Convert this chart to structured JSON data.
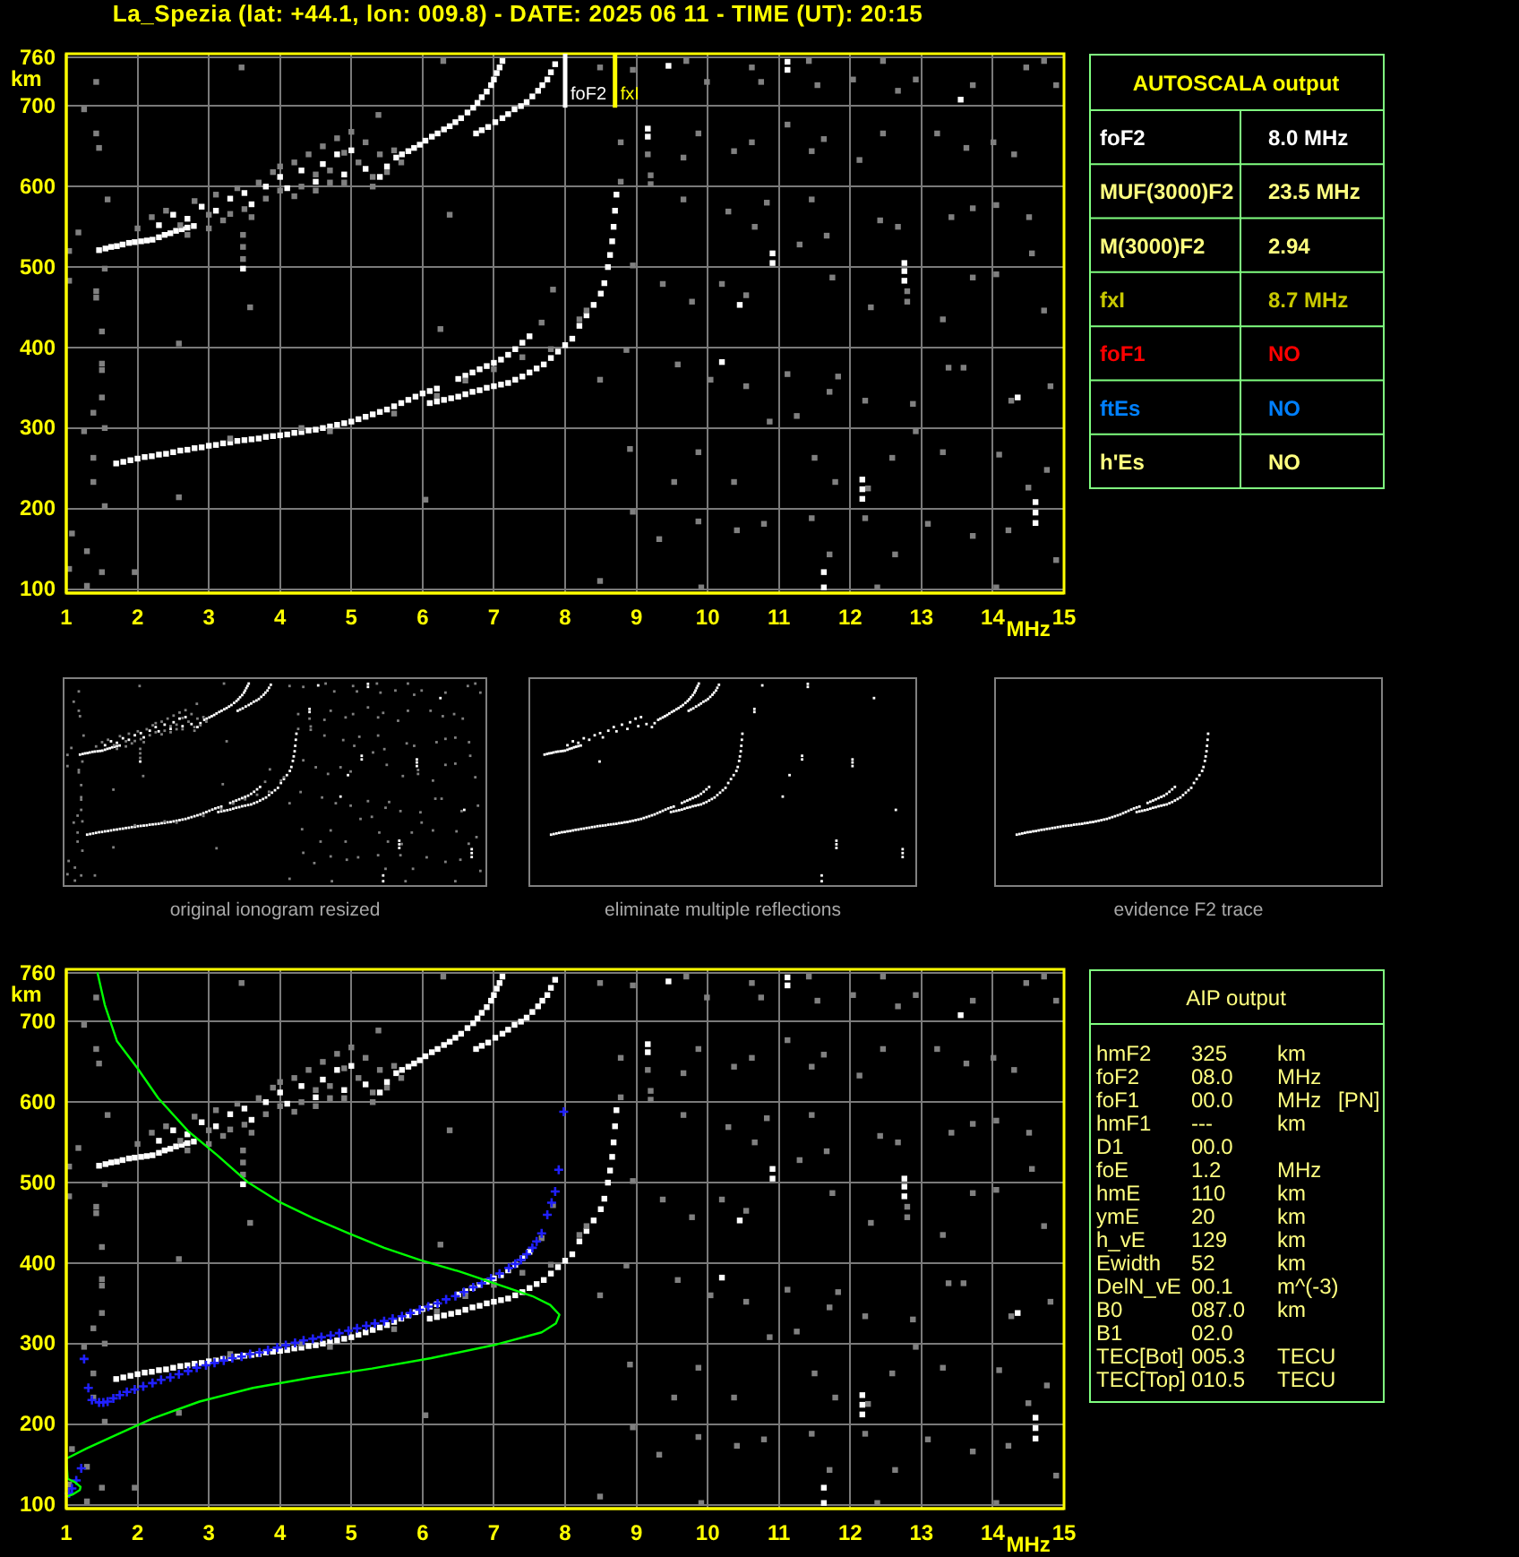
{
  "chart_data": [
    {
      "type": "scatter",
      "title": "La_Spezia (lat: +44.1, lon: 009.8) - DATE: 2025 06 11 - TIME (UT): 20:15",
      "xlabel": "MHz",
      "ylabel": "km",
      "xlim": [
        1,
        15
      ],
      "ylim": [
        95,
        765
      ],
      "xticks": [
        1,
        2,
        3,
        4,
        5,
        6,
        7,
        8,
        9,
        10,
        11,
        12,
        13,
        14,
        15
      ],
      "yticks": [
        100,
        200,
        300,
        400,
        500,
        600,
        700,
        760
      ],
      "grid": true,
      "marker": "square",
      "series": [
        {
          "color": "#ffffff",
          "x": [
            1.7,
            1.8,
            1.9,
            2.0,
            2.1,
            2.2,
            2.3,
            2.4,
            2.5,
            2.6,
            2.7,
            2.8,
            2.9,
            3.0,
            3.1,
            3.2,
            3.3,
            3.4,
            3.5,
            3.6,
            3.7,
            3.8,
            3.9,
            4.0,
            4.1,
            4.2,
            4.3,
            4.4,
            4.5,
            4.6,
            4.7,
            4.8,
            4.9,
            5.0,
            5.1,
            5.2,
            5.3,
            5.4,
            5.5,
            5.6,
            5.7,
            5.8,
            5.9,
            6.0,
            6.1,
            6.2,
            6.5,
            6.6,
            6.7,
            6.8,
            6.9,
            7.0,
            7.1,
            7.2,
            7.3,
            7.4,
            7.5,
            6.1,
            6.2,
            6.3,
            6.4,
            6.5,
            6.6,
            6.7,
            6.8,
            6.9,
            7.0,
            7.1,
            7.2,
            7.3,
            7.4,
            7.5,
            7.6,
            7.7,
            7.8,
            7.9,
            8.0,
            8.1,
            8.2,
            8.3,
            8.4,
            8.5,
            8.55,
            8.6,
            8.63,
            8.66,
            8.68,
            8.7,
            8.72
          ],
          "values": [
            256,
            258,
            260,
            262,
            264,
            265,
            267,
            268,
            270,
            272,
            273,
            275,
            276,
            278,
            279,
            281,
            282,
            284,
            285,
            286,
            287,
            289,
            290,
            291,
            292,
            294,
            295,
            297,
            298,
            300,
            302,
            304,
            306,
            308,
            311,
            314,
            317,
            320,
            323,
            327,
            331,
            335,
            339,
            343,
            346,
            349,
            361,
            365,
            369,
            373,
            377,
            381,
            385,
            391,
            398,
            406,
            414,
            331,
            333,
            335,
            337,
            339,
            342,
            345,
            347,
            350,
            352,
            354,
            356,
            360,
            364,
            369,
            374,
            379,
            387,
            395,
            403,
            411,
            427,
            440,
            453,
            467,
            480,
            500,
            515,
            532,
            550,
            570,
            590
          ]
        },
        {
          "color": "#ffffff",
          "x": [
            1.46,
            1.55,
            1.63,
            1.71,
            1.79,
            1.88,
            1.96,
            2.05,
            2.13,
            2.21,
            2.3,
            2.38,
            2.46,
            2.54,
            2.62,
            2.7,
            2.79,
            5.63,
            5.71,
            5.8,
            5.88,
            5.96,
            6.04,
            6.13,
            6.21,
            6.3,
            6.38,
            6.46,
            6.54,
            6.63,
            6.71,
            6.77,
            6.83,
            6.9,
            6.96,
            7.0,
            7.04,
            7.08,
            7.12,
            6.75,
            6.83,
            6.92,
            7.02,
            7.12,
            7.2,
            7.29,
            7.38,
            7.46,
            7.54,
            7.62,
            7.68,
            7.75,
            7.8,
            7.86,
            2.3,
            2.5,
            2.7,
            2.9,
            3.1,
            3.3,
            3.5,
            3.6,
            3.8,
            4.0,
            4.1,
            4.3,
            4.5,
            4.6,
            4.8,
            4.9,
            5.0,
            5.2,
            5.4,
            5.5,
            9.16,
            9.16,
            9.45,
            10.45,
            10.91,
            10.91,
            11.12,
            11.12,
            12.76,
            12.76,
            12.76,
            13.55,
            10.2,
            12.17,
            12.17,
            12.17,
            14.6,
            14.6,
            14.6,
            14.35,
            11.63,
            11.63,
            3.48
          ],
          "values": [
            521,
            523,
            525,
            526,
            528,
            530,
            531,
            532,
            533,
            534,
            537,
            540,
            542,
            545,
            547,
            549,
            551,
            636,
            640,
            644,
            648,
            652,
            657,
            662,
            666,
            671,
            675,
            680,
            685,
            692,
            698,
            704,
            711,
            718,
            726,
            733,
            741,
            748,
            756,
            666,
            670,
            674,
            680,
            685,
            690,
            696,
            700,
            705,
            712,
            719,
            726,
            733,
            742,
            752,
            552,
            565,
            560,
            575,
            570,
            585,
            592,
            578,
            600,
            612,
            598,
            620,
            606,
            628,
            640,
            615,
            645,
            622,
            612,
            625,
            662,
            672,
            750,
            453,
            505,
            517,
            745,
            755,
            483,
            495,
            505,
            708,
            382,
            212,
            224,
            236,
            182,
            195,
            208,
            338,
            121,
            102,
            498
          ]
        },
        {
          "color": "#808080",
          "x": [
            2.0,
            2.2,
            2.4,
            2.6,
            2.8,
            3.0,
            3.1,
            3.2,
            3.4,
            3.5,
            3.7,
            3.8,
            3.9,
            4.0,
            4.2,
            4.3,
            4.4,
            4.5,
            4.6,
            4.7,
            4.8,
            4.9,
            5.0,
            5.1,
            5.2,
            5.3,
            5.4,
            5.5,
            5.6,
            4.2,
            3.6,
            4.9,
            5.3,
            2.7,
            3.3,
            4.5,
            5.7,
            3.0,
            4.0,
            4.7,
            3.3,
            4.3,
            4.7,
            5.6,
            6.2,
            6.6,
            7.0,
            7.4,
            7.8,
            8.2,
            8.3,
            1.42,
            1.25,
            1.42,
            1.46,
            1.58,
            1.17,
            1.04,
            1.54,
            1.04,
            1.42,
            1.42,
            1.5,
            1.5,
            1.5,
            1.5,
            1.38,
            1.25,
            1.38,
            1.38,
            1.54,
            1.08,
            1.29,
            1.04,
            1.5,
            1.96,
            1.29,
            3.46,
            5.38,
            3.48,
            3.48,
            3.48,
            6.38,
            3.58,
            2.58,
            6.25,
            7.83,
            7.67,
            2.58,
            6.04,
            1.54,
            6.29,
            8.49,
            8.95,
            9.7,
            9.99,
            10.62,
            10.75,
            11.42,
            11.54,
            12.04,
            12.46,
            12.67,
            12.92,
            13.72,
            14.47,
            14.72,
            14.89,
            8.78,
            9.2,
            9.66,
            9.87,
            10.37,
            10.62,
            11.12,
            11.46,
            11.63,
            12.13,
            12.46,
            13.22,
            13.63,
            14.01,
            14.3,
            9.16,
            8.78,
            9.2,
            9.66,
            10.29,
            10.66,
            10.83,
            11.46,
            11.67,
            12.42,
            12.67,
            13.42,
            13.72,
            14.05,
            14.51,
            14.55,
            8.95,
            9.37,
            9.78,
            10.2,
            10.54,
            11.29,
            11.75,
            12.29,
            12.8,
            13.3,
            13.72,
            14.05,
            14.72,
            12.8,
            8.49,
            8.86,
            9.58,
            10.04,
            10.54,
            11.12,
            11.71,
            11.83,
            12.21,
            12.88,
            13.38,
            13.59,
            14.26,
            14.81,
            8.91,
            9.53,
            9.87,
            10.37,
            10.87,
            11.25,
            11.5,
            11.79,
            12.59,
            12.92,
            13.3,
            14.09,
            14.76,
            14.5,
            12.25,
            8.95,
            9.32,
            9.87,
            10.41,
            10.79,
            11.46,
            11.71,
            12.21,
            12.63,
            13.09,
            13.72,
            14.22,
            14.89,
            8.49,
            9.91,
            12.38,
            14.05
          ],
          "values": [
            548,
            562,
            570,
            552,
            582,
            565,
            590,
            558,
            598,
            572,
            605,
            585,
            618,
            595,
            630,
            600,
            640,
            615,
            650,
            620,
            660,
            642,
            668,
            630,
            655,
            612,
            640,
            618,
            645,
            588,
            562,
            605,
            600,
            540,
            566,
            595,
            630,
            548,
            625,
            605,
            287,
            300,
            296,
            318,
            340,
            359,
            373,
            388,
            398,
            435,
            446,
            730,
            696,
            666,
            648,
            584,
            543,
            520,
            498,
            483,
            470,
            462,
            420,
            380,
            372,
            338,
            319,
            296,
            263,
            233,
            203,
            169,
            147,
            125,
            121,
            121,
            104,
            748,
            689,
            540,
            525,
            510,
            565,
            450,
            405,
            423,
            472,
            431,
            214,
            211,
            300,
            756,
            748,
            745,
            756,
            730,
            748,
            730,
            756,
            726,
            733,
            756,
            719,
            733,
            726,
            748,
            756,
            726,
            655,
            614,
            636,
            666,
            644,
            655,
            677,
            644,
            659,
            633,
            666,
            666,
            648,
            655,
            640,
            640,
            606,
            603,
            584,
            569,
            550,
            580,
            584,
            539,
            558,
            550,
            562,
            573,
            577,
            562,
            517,
            502,
            479,
            457,
            479,
            465,
            528,
            487,
            450,
            457,
            435,
            487,
            491,
            446,
            470,
            360,
            397,
            379,
            360,
            352,
            367,
            345,
            364,
            334,
            330,
            375,
            375,
            334,
            352,
            274,
            233,
            270,
            233,
            308,
            315,
            263,
            233,
            263,
            296,
            270,
            267,
            248,
            226,
            225,
            196,
            162,
            184,
            173,
            181,
            188,
            143,
            188,
            143,
            181,
            166,
            173,
            136,
            110,
            102,
            102,
            102
          ]
        }
      ],
      "ref_lines": [
        {
          "axis": "x",
          "value": 8.0,
          "label": "foF2",
          "color": "#ffffff"
        },
        {
          "axis": "x",
          "value": 8.7,
          "label": "fxI",
          "color": "#ffff00"
        }
      ]
    },
    {
      "type": "other",
      "title": "AUTOSCALA output",
      "annotations": [
        "foF2\t8.0 MHz",
        "MUF(3000)F2\t23.5 MHz",
        "M(3000)F2\t2.94",
        "fxI\t8.7 MHz",
        "foF1\tNO",
        "ftEs\tNO",
        "h'Es\tNO"
      ],
      "colors": [
        "#ffffff",
        "#ffff80",
        "#ffff80",
        "#c8c800",
        "#ff0000",
        "#0080ff",
        "#ffff80"
      ]
    },
    {
      "type": "other",
      "annotations": [
        "original ionogram resized",
        "eliminate multiple reflections",
        "evidence F2 trace"
      ]
    },
    {
      "type": "scatter",
      "xlabel": "MHz",
      "ylabel": "km",
      "xlim": [
        1,
        15
      ],
      "ylim": [
        95,
        765
      ],
      "xticks": [
        1,
        2,
        3,
        4,
        5,
        6,
        7,
        8,
        9,
        10,
        11,
        12,
        13,
        14,
        15
      ],
      "yticks": [
        100,
        200,
        300,
        400,
        500,
        600,
        700,
        760
      ],
      "grid": true,
      "marker": "square",
      "series": [
        {
          "color": "#ffffff",
          "x": [
            1.7,
            1.8,
            1.9,
            2.0,
            2.1,
            2.2,
            2.3,
            2.4,
            2.5,
            2.6,
            2.7,
            2.8,
            2.9,
            3.0,
            3.1,
            3.2,
            3.3,
            3.4,
            3.5,
            3.6,
            3.7,
            3.8,
            3.9,
            4.0,
            4.1,
            4.2,
            4.3,
            4.4,
            4.5,
            4.6,
            4.7,
            4.8,
            4.9,
            5.0,
            5.1,
            5.2,
            5.3,
            5.4,
            5.5,
            5.6,
            5.7,
            5.8,
            5.9,
            6.0,
            6.1,
            6.2,
            6.5,
            6.6,
            6.7,
            6.8,
            6.9,
            7.0,
            7.1,
            7.2,
            7.3,
            7.4,
            7.5,
            6.1,
            6.2,
            6.3,
            6.4,
            6.5,
            6.6,
            6.7,
            6.8,
            6.9,
            7.0,
            7.1,
            7.2,
            7.3,
            7.4,
            7.5,
            7.6,
            7.7,
            7.8,
            7.9,
            8.0,
            8.1,
            8.2,
            8.3,
            8.4,
            8.5,
            8.55,
            8.6,
            8.63,
            8.66,
            8.68,
            8.7,
            8.72
          ],
          "values": [
            256,
            258,
            260,
            262,
            264,
            265,
            267,
            268,
            270,
            272,
            273,
            275,
            276,
            278,
            279,
            281,
            282,
            284,
            285,
            286,
            287,
            289,
            290,
            291,
            292,
            294,
            295,
            297,
            298,
            300,
            302,
            304,
            306,
            308,
            311,
            314,
            317,
            320,
            323,
            327,
            331,
            335,
            339,
            343,
            346,
            349,
            361,
            365,
            369,
            373,
            377,
            381,
            385,
            391,
            398,
            406,
            414,
            331,
            333,
            335,
            337,
            339,
            342,
            345,
            347,
            350,
            352,
            354,
            356,
            360,
            364,
            369,
            374,
            379,
            387,
            395,
            403,
            411,
            427,
            440,
            453,
            467,
            480,
            500,
            515,
            532,
            550,
            570,
            590
          ]
        },
        {
          "color": "#ffffff",
          "x": [
            1.46,
            1.55,
            1.63,
            1.71,
            1.79,
            1.88,
            1.96,
            2.05,
            2.13,
            2.21,
            2.3,
            2.38,
            2.46,
            2.54,
            2.62,
            2.7,
            2.79,
            5.63,
            5.71,
            5.8,
            5.88,
            5.96,
            6.04,
            6.13,
            6.21,
            6.3,
            6.38,
            6.46,
            6.54,
            6.63,
            6.71,
            6.77,
            6.83,
            6.9,
            6.96,
            7.0,
            7.04,
            7.08,
            7.12,
            6.75,
            6.83,
            6.92,
            7.02,
            7.12,
            7.2,
            7.29,
            7.38,
            7.46,
            7.54,
            7.62,
            7.68,
            7.75,
            7.8,
            7.86,
            2.3,
            2.5,
            2.7,
            2.9,
            3.1,
            3.3,
            3.5,
            3.6,
            3.8,
            4.0,
            4.1,
            4.3,
            4.5,
            4.6,
            4.8,
            4.9,
            5.0,
            5.2,
            5.4,
            5.5,
            9.16,
            9.16,
            9.45,
            10.45,
            10.91,
            10.91,
            11.12,
            11.12,
            12.76,
            12.76,
            12.76,
            13.55,
            10.2,
            12.17,
            12.17,
            12.17,
            14.6,
            14.6,
            14.6,
            14.35,
            11.63,
            11.63,
            3.48
          ],
          "values": [
            521,
            523,
            525,
            526,
            528,
            530,
            531,
            532,
            533,
            534,
            537,
            540,
            542,
            545,
            547,
            549,
            551,
            636,
            640,
            644,
            648,
            652,
            657,
            662,
            666,
            671,
            675,
            680,
            685,
            692,
            698,
            704,
            711,
            718,
            726,
            733,
            741,
            748,
            756,
            666,
            670,
            674,
            680,
            685,
            690,
            696,
            700,
            705,
            712,
            719,
            726,
            733,
            742,
            752,
            552,
            565,
            560,
            575,
            570,
            585,
            592,
            578,
            600,
            612,
            598,
            620,
            606,
            628,
            640,
            615,
            645,
            622,
            612,
            625,
            662,
            672,
            750,
            453,
            505,
            517,
            745,
            755,
            483,
            495,
            505,
            708,
            382,
            212,
            224,
            236,
            182,
            195,
            208,
            338,
            121,
            102,
            498
          ]
        },
        {
          "color": "#808080",
          "x": [
            2.0,
            2.2,
            2.4,
            2.6,
            2.8,
            3.0,
            3.1,
            3.2,
            3.4,
            3.5,
            3.7,
            3.8,
            3.9,
            4.0,
            4.2,
            4.3,
            4.4,
            4.5,
            4.6,
            4.7,
            4.8,
            4.9,
            5.0,
            5.1,
            5.2,
            5.3,
            5.4,
            5.5,
            5.6,
            4.2,
            3.6,
            4.9,
            5.3,
            2.7,
            3.3,
            4.5,
            5.7,
            3.0,
            4.0,
            4.7,
            3.3,
            4.3,
            4.7,
            5.6,
            6.2,
            6.6,
            7.0,
            7.4,
            7.8,
            8.2,
            8.3,
            1.42,
            1.25,
            1.42,
            1.46,
            1.58,
            1.17,
            1.04,
            1.54,
            1.04,
            1.42,
            1.42,
            1.5,
            1.5,
            1.5,
            1.5,
            1.38,
            1.25,
            1.38,
            1.38,
            1.54,
            1.08,
            1.29,
            1.04,
            1.5,
            1.96,
            1.29,
            3.46,
            5.38,
            3.48,
            3.48,
            3.48,
            6.38,
            3.58,
            2.58,
            6.25,
            7.83,
            7.67,
            2.58,
            6.04,
            1.54,
            6.29,
            8.49,
            8.95,
            9.7,
            9.99,
            10.62,
            10.75,
            11.42,
            11.54,
            12.04,
            12.46,
            12.67,
            12.92,
            13.72,
            14.47,
            14.72,
            14.89,
            8.78,
            9.2,
            9.66,
            9.87,
            10.37,
            10.62,
            11.12,
            11.46,
            11.63,
            12.13,
            12.46,
            13.22,
            13.63,
            14.01,
            14.3,
            9.16,
            8.78,
            9.2,
            9.66,
            10.29,
            10.66,
            10.83,
            11.46,
            11.67,
            12.42,
            12.67,
            13.42,
            13.72,
            14.05,
            14.51,
            14.55,
            8.95,
            9.37,
            9.78,
            10.2,
            10.54,
            11.29,
            11.75,
            12.29,
            12.8,
            13.3,
            13.72,
            14.05,
            14.72,
            12.8,
            8.49,
            8.86,
            9.58,
            10.04,
            10.54,
            11.12,
            11.71,
            11.83,
            12.21,
            12.88,
            13.38,
            13.59,
            14.26,
            14.81,
            8.91,
            9.53,
            9.87,
            10.37,
            10.87,
            11.25,
            11.5,
            11.79,
            12.59,
            12.92,
            13.3,
            14.09,
            14.76,
            14.5,
            12.25,
            8.95,
            9.32,
            9.87,
            10.41,
            10.79,
            11.46,
            11.71,
            12.21,
            12.63,
            13.09,
            13.72,
            14.22,
            14.89,
            8.49,
            9.91,
            12.38,
            14.05
          ],
          "values": [
            548,
            562,
            570,
            552,
            582,
            565,
            590,
            558,
            598,
            572,
            605,
            585,
            618,
            595,
            630,
            600,
            640,
            615,
            650,
            620,
            660,
            642,
            668,
            630,
            655,
            612,
            640,
            618,
            645,
            588,
            562,
            605,
            600,
            540,
            566,
            595,
            630,
            548,
            625,
            605,
            287,
            300,
            296,
            318,
            340,
            359,
            373,
            388,
            398,
            435,
            446,
            730,
            696,
            666,
            648,
            584,
            543,
            520,
            498,
            483,
            470,
            462,
            420,
            380,
            372,
            338,
            319,
            296,
            263,
            233,
            203,
            169,
            147,
            125,
            121,
            121,
            104,
            748,
            689,
            540,
            525,
            510,
            565,
            450,
            405,
            423,
            472,
            431,
            214,
            211,
            300,
            756,
            748,
            745,
            756,
            730,
            748,
            730,
            756,
            726,
            733,
            756,
            719,
            733,
            726,
            748,
            756,
            726,
            655,
            614,
            636,
            666,
            644,
            655,
            677,
            644,
            659,
            633,
            666,
            666,
            648,
            655,
            640,
            640,
            606,
            603,
            584,
            569,
            550,
            580,
            584,
            539,
            558,
            550,
            562,
            573,
            577,
            562,
            517,
            502,
            479,
            457,
            479,
            465,
            528,
            487,
            450,
            457,
            435,
            487,
            491,
            446,
            470,
            360,
            397,
            379,
            360,
            352,
            367,
            345,
            364,
            334,
            330,
            375,
            375,
            334,
            352,
            274,
            233,
            270,
            233,
            308,
            315,
            263,
            233,
            263,
            296,
            270,
            267,
            248,
            226,
            225,
            196,
            162,
            184,
            173,
            181,
            188,
            143,
            188,
            143,
            181,
            166,
            173,
            136,
            110,
            102,
            102,
            102
          ]
        },
        {
          "color": "#2020ff",
          "marker": "cross",
          "x": [
            1.04,
            1.08,
            1.14,
            1.21,
            1.25,
            1.31,
            1.36,
            1.46,
            1.52,
            1.58,
            1.66,
            1.75,
            1.85,
            1.96,
            2.08,
            2.21,
            2.33,
            2.46,
            2.58,
            2.71,
            2.83,
            2.96,
            3.08,
            3.21,
            3.33,
            3.46,
            3.58,
            3.71,
            3.83,
            3.96,
            4.08,
            4.21,
            4.33,
            4.46,
            4.58,
            4.71,
            4.83,
            4.96,
            5.08,
            5.21,
            5.33,
            5.46,
            5.58,
            5.71,
            5.83,
            5.96,
            6.08,
            6.21,
            6.33,
            6.46,
            6.58,
            6.71,
            6.83,
            6.96,
            7.08,
            7.21,
            7.3,
            7.38,
            7.46,
            7.54,
            7.6,
            7.67,
            7.75,
            7.81,
            7.86,
            7.91,
            7.98
          ],
          "values": [
            114,
            120,
            130,
            145,
            281,
            245,
            230,
            227,
            227,
            228,
            232,
            236,
            240,
            243,
            247,
            251,
            255,
            258,
            262,
            266,
            270,
            273,
            276,
            279,
            282,
            284,
            287,
            289,
            292,
            295,
            298,
            301,
            304,
            306,
            308,
            310,
            313,
            316,
            319,
            322,
            325,
            328,
            331,
            334,
            338,
            342,
            346,
            350,
            355,
            359,
            364,
            370,
            375,
            381,
            387,
            394,
            399,
            404,
            411,
            419,
            427,
            437,
            460,
            475,
            489,
            516,
            588
          ]
        },
        {
          "type": "line",
          "color": "#00ff00",
          "marker": "none",
          "x": [
            1.0,
            1.1,
            1.19,
            1.2,
            1.12,
            1.02,
            1.0,
            1.29,
            1.71,
            2.21,
            2.87,
            3.62,
            4.46,
            5.29,
            6.12,
            7.04,
            7.67,
            7.87,
            7.92,
            7.79,
            7.54,
            7.04,
            6.54,
            5.96,
            5.46,
            4.96,
            4.46,
            3.99,
            3.54,
            3.12,
            2.71,
            2.29,
            2.0,
            1.71,
            1.54,
            1.44
          ],
          "values": [
            110,
            113,
            118,
            122,
            128,
            132,
            157,
            170,
            187,
            207,
            228,
            245,
            258,
            269,
            282,
            299,
            314,
            325,
            336,
            348,
            359,
            374,
            389,
            404,
            419,
            437,
            456,
            476,
            501,
            534,
            564,
            605,
            642,
            676,
            721,
            760
          ]
        }
      ]
    },
    {
      "type": "other",
      "title": "AIP output",
      "color": "#ffff80",
      "annotations": [
        "hmF2\t325\tkm",
        "foF2\t08.0\tMHz",
        "foF1\t00.0\tMHz\t[PN]",
        "hmF1\t---\tkm",
        "D1\t00.0",
        "foE\t1.2\tMHz",
        "hmE\t110\tkm",
        "ymE\t20\tkm",
        "h_vE\t129\tkm",
        "Ewidth\t52\tkm",
        "DelN_vE\t00.1\tm^(-3)",
        "B0\t087.0\tkm",
        "B1\t02.0",
        "TEC[Bot]\t005.3\tTECU",
        "TEC[Top]\t010.5\tTECU"
      ]
    }
  ]
}
